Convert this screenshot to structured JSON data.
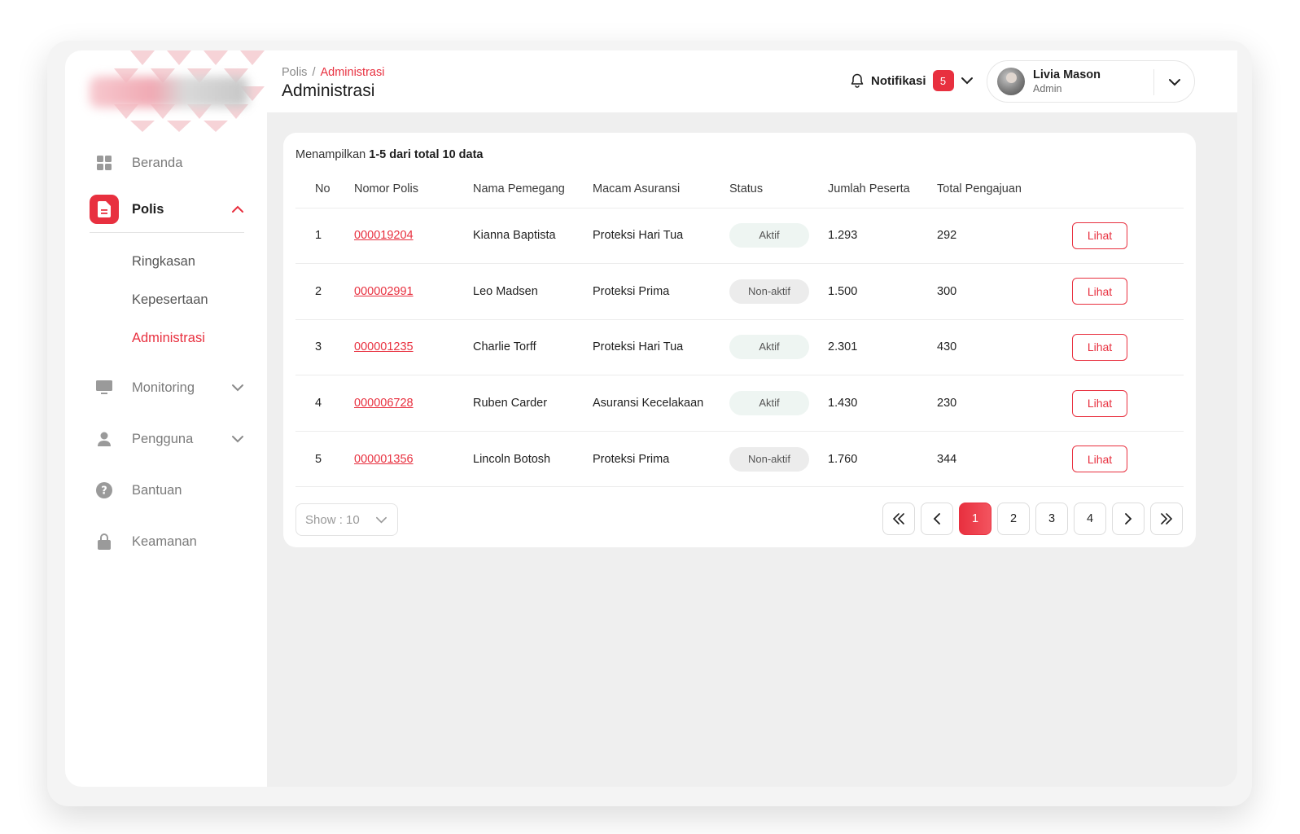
{
  "colors": {
    "accent": "#e8303f",
    "active_status_bg": "#eef5f2",
    "inactive_status_bg": "#ececec"
  },
  "header": {
    "breadcrumb": {
      "parent": "Polis",
      "separator": "/",
      "current": "Administrasi"
    },
    "title": "Administrasi",
    "notification": {
      "label": "Notifikasi",
      "count": "5"
    },
    "user": {
      "name": "Livia Mason",
      "role": "Admin"
    }
  },
  "sidebar": {
    "items": [
      {
        "label": "Beranda",
        "icon": "grid-icon"
      },
      {
        "label": "Polis",
        "icon": "document-icon",
        "active": true
      },
      {
        "label": "Monitoring",
        "icon": "monitor-icon"
      },
      {
        "label": "Pengguna",
        "icon": "user-icon"
      },
      {
        "label": "Bantuan",
        "icon": "help-icon"
      },
      {
        "label": "Keamanan",
        "icon": "lock-icon"
      }
    ],
    "polis_sub": [
      {
        "label": "Ringkasan"
      },
      {
        "label": "Kepesertaan"
      },
      {
        "label": "Administrasi",
        "active": true
      }
    ]
  },
  "table": {
    "summary": {
      "prefix": "Menampilkan ",
      "range": "1-5 dari total 10 data"
    },
    "columns": [
      "No",
      "Nomor Polis",
      "Nama Pemegang",
      "Macam Asuransi",
      "Status",
      "Jumlah Peserta",
      "Total Pengajuan"
    ],
    "rows": [
      {
        "no": "1",
        "nomor": "000019204",
        "nama": "Kianna Baptista",
        "asuransi": "Proteksi Hari Tua",
        "status": "Aktif",
        "peserta": "1.293",
        "total": "292",
        "action": "Lihat"
      },
      {
        "no": "2",
        "nomor": "000002991",
        "nama": "Leo Madsen",
        "asuransi": "Proteksi Prima",
        "status": "Non-aktif",
        "peserta": "1.500",
        "total": "300",
        "action": "Lihat"
      },
      {
        "no": "3",
        "nomor": "000001235",
        "nama": "Charlie Torff",
        "asuransi": "Proteksi Hari Tua",
        "status": "Aktif",
        "peserta": "2.301",
        "total": "430",
        "action": "Lihat"
      },
      {
        "no": "4",
        "nomor": "000006728",
        "nama": "Ruben Carder",
        "asuransi": "Asuransi Kecelakaan",
        "status": "Aktif",
        "peserta": "1.430",
        "total": "230",
        "action": "Lihat"
      },
      {
        "no": "5",
        "nomor": "000001356",
        "nama": "Lincoln Botosh",
        "asuransi": "Proteksi Prima",
        "status": "Non-aktif",
        "peserta": "1.760",
        "total": "344",
        "action": "Lihat"
      }
    ]
  },
  "footer": {
    "show_select": "Show : 10",
    "pages": [
      "1",
      "2",
      "3",
      "4"
    ],
    "current_page": "1"
  }
}
